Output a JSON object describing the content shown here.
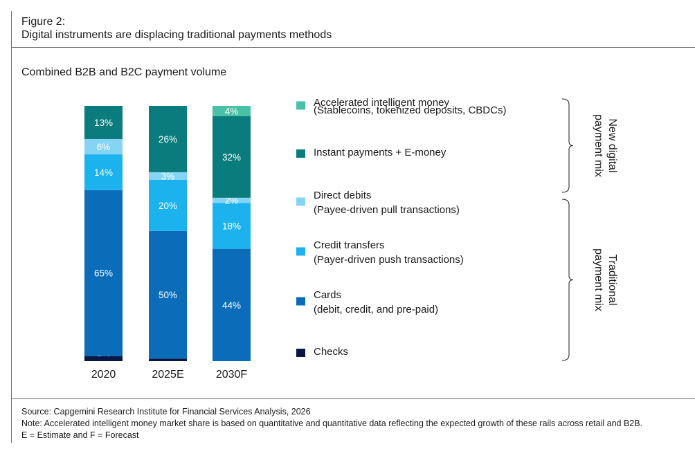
{
  "figure": {
    "label": "Figure 2:",
    "title": "Digital instruments are displacing traditional payments methods",
    "subtitle": "Combined B2B and B2C payment volume"
  },
  "chart_data": {
    "type": "bar",
    "stacked": true,
    "unit": "%",
    "categories": [
      "2020",
      "2025E",
      "2030F"
    ],
    "series": [
      {
        "name": "Checks",
        "color": "#0b1747",
        "values": [
          2,
          1,
          0
        ]
      },
      {
        "name": "Cards",
        "detail": "(debit, credit, and pre-paid)",
        "color": "#0b6dba",
        "values": [
          65,
          50,
          44
        ]
      },
      {
        "name": "Credit transfers",
        "detail": "(Payer-driven push transactions)",
        "color": "#1cb2ee",
        "values": [
          14,
          20,
          18
        ]
      },
      {
        "name": "Direct debits",
        "detail": "(Payee-driven pull transactions)",
        "color": "#86d4f3",
        "values": [
          6,
          3,
          2
        ]
      },
      {
        "name": "Instant payments + E-money",
        "detail": "",
        "color": "#0b7c7d",
        "values": [
          13,
          26,
          32
        ]
      },
      {
        "name": "Accelerated intelligent money",
        "detail": "(Stablecoins, tokenized deposits, CBDCs)",
        "color": "#49c1a6",
        "values": [
          0,
          0,
          4
        ]
      }
    ],
    "legend_order": [
      5,
      4,
      3,
      2,
      1,
      0
    ],
    "groups": [
      {
        "label": "New digital payment mix",
        "members": [
          5,
          4
        ]
      },
      {
        "label": "Traditional payment mix",
        "members": [
          3,
          2,
          1,
          0
        ]
      }
    ],
    "ylim": [
      0,
      100
    ]
  },
  "footer": {
    "source": "Source: Capgemini Research Institute for Financial Services Analysis, 2026",
    "note": "Note: Accelerated intelligent money market share is based on quantitative and quantitative data reflecting the expected growth of these rails across retail and B2B.",
    "abbrev": "E = Estimate and F = Forecast"
  }
}
